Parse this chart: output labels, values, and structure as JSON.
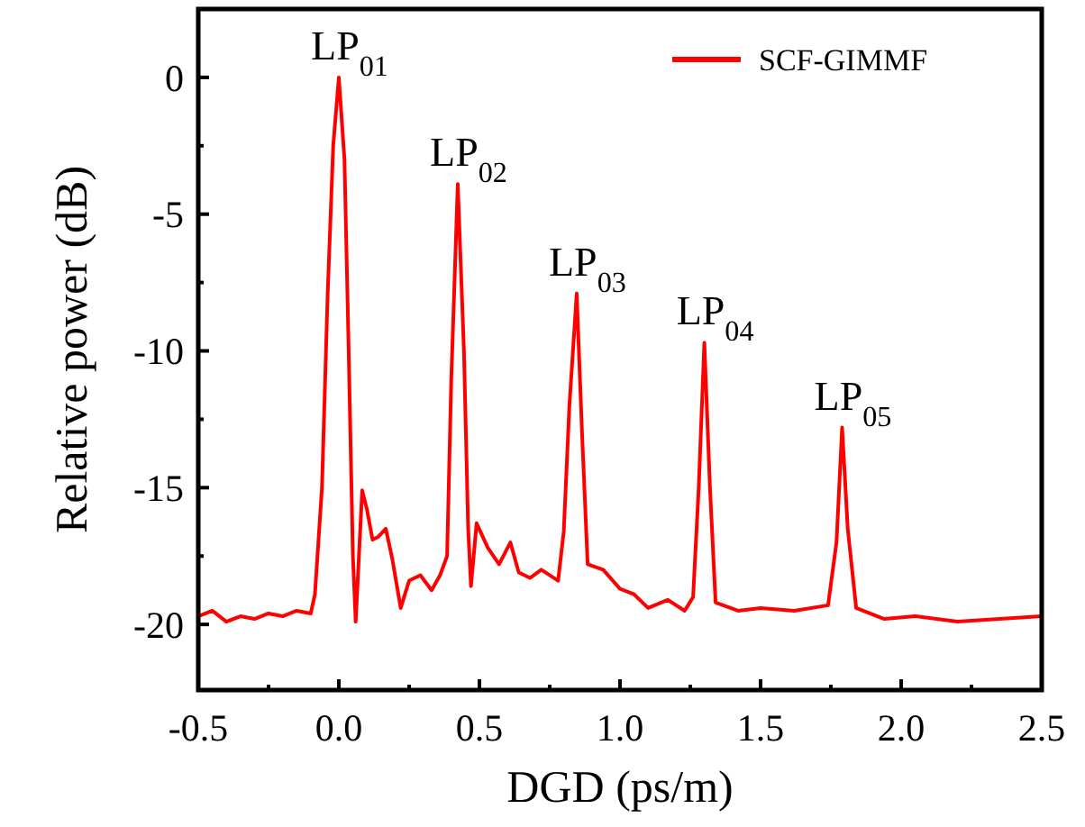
{
  "chart_data": {
    "type": "line",
    "xlabel": "DGD (ps/m)",
    "ylabel": "Relative power (dB)",
    "xlim": [
      -0.5,
      2.5
    ],
    "ylim": [
      -22.4,
      2.5
    ],
    "xticks": [
      -0.5,
      {
        "value": -0.25,
        "label": null
      },
      {
        "value": 0,
        "label": "0.0"
      },
      {
        "value": 0.25,
        "label": null
      },
      0.5,
      {
        "value": 0.75,
        "label": null
      },
      {
        "value": 1,
        "label": "1.0"
      },
      {
        "value": 1.25,
        "label": null
      },
      1.5,
      {
        "value": 1.75,
        "label": null
      },
      {
        "value": 2,
        "label": "2.0"
      },
      {
        "value": 2.25,
        "label": null
      },
      2.5
    ],
    "yticks": [
      {
        "value": -20,
        "label": "-20"
      },
      {
        "value": -17.5,
        "label": null
      },
      -15,
      {
        "value": -12.5,
        "label": null
      },
      -10,
      {
        "value": -7.5,
        "label": null
      },
      -5,
      {
        "value": -2.5,
        "label": null
      },
      0
    ],
    "grid": false,
    "legend": "top right",
    "marker": "none",
    "line_style": "solid",
    "series": [
      {
        "name": "SCF-GIMMF",
        "color": "#ff0000",
        "x": [
          -0.5,
          -0.45,
          -0.4,
          -0.35,
          -0.3,
          -0.25,
          -0.2,
          -0.15,
          -0.1,
          -0.085,
          -0.06,
          -0.04,
          -0.02,
          0,
          0.02,
          0.035,
          0.05,
          0.06,
          0.083,
          0.1,
          0.12,
          0.14,
          0.167,
          0.19,
          0.22,
          0.25,
          0.29,
          0.33,
          0.36,
          0.385,
          0.4,
          0.423,
          0.445,
          0.46,
          0.47,
          0.49,
          0.53,
          0.57,
          0.61,
          0.64,
          0.68,
          0.72,
          0.78,
          0.8,
          0.82,
          0.846,
          0.865,
          0.885,
          0.94,
          1.0,
          1.05,
          1.1,
          1.17,
          1.23,
          1.26,
          1.28,
          1.3,
          1.32,
          1.34,
          1.42,
          1.5,
          1.62,
          1.74,
          1.77,
          1.79,
          1.81,
          1.84,
          1.94,
          2.05,
          2.2,
          2.35,
          2.5
        ],
        "values": [
          -19.7,
          -19.5,
          -19.9,
          -19.7,
          -19.8,
          -19.6,
          -19.7,
          -19.5,
          -19.6,
          -18.9,
          -15,
          -8,
          -2.5,
          0,
          -3,
          -10,
          -17.5,
          -19.9,
          -15.1,
          -15.8,
          -16.9,
          -16.8,
          -16.5,
          -17.6,
          -19.4,
          -18.4,
          -18.2,
          -18.75,
          -18.2,
          -17.5,
          -11,
          -3.9,
          -10,
          -16.5,
          -18.6,
          -16.3,
          -17.2,
          -17.8,
          -17,
          -18.1,
          -18.3,
          -18,
          -18.4,
          -16.6,
          -12,
          -7.9,
          -13,
          -17.8,
          -18,
          -18.7,
          -18.9,
          -19.4,
          -19.1,
          -19.5,
          -19.0,
          -15,
          -9.7,
          -15,
          -19.2,
          -19.5,
          -19.4,
          -19.5,
          -19.3,
          -17,
          -12.8,
          -16.5,
          -19.4,
          -19.8,
          -19.7,
          -19.9,
          -19.8,
          -19.7
        ]
      }
    ],
    "annotations": [
      {
        "text": "LP$_{01}$",
        "x": 0,
        "y": 0
      },
      {
        "text": "LP$_{02}$",
        "x": 0.423,
        "y": -3.9
      },
      {
        "text": "LP$_{03}$",
        "x": 0.846,
        "y": -7.9
      },
      {
        "text": "LP$_{04}$",
        "x": 1.3,
        "y": -9.7
      },
      {
        "text": "LP$_{05}$",
        "x": 1.79,
        "y": -12.8
      }
    ]
  }
}
